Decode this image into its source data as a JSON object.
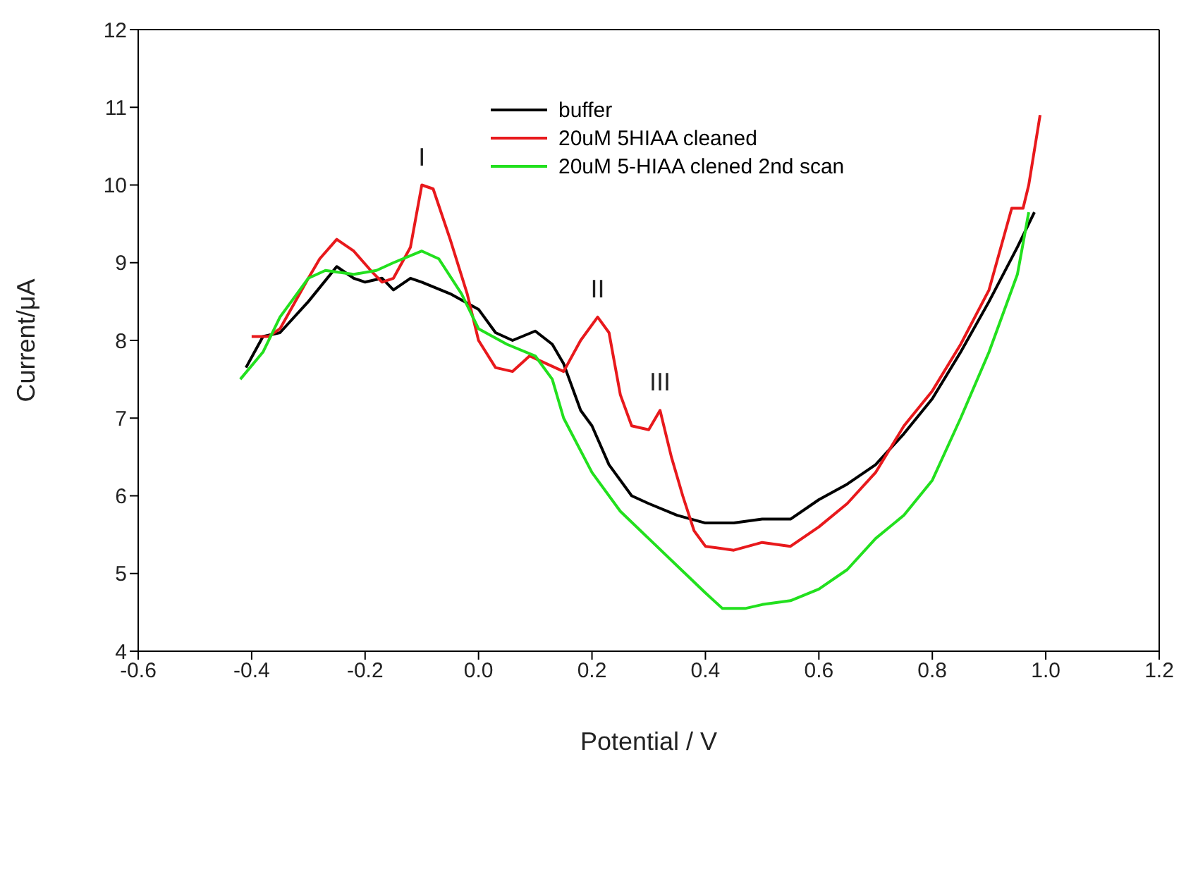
{
  "chart_data": {
    "type": "line",
    "xlabel": "Potential / V",
    "ylabel": "Current/μA",
    "xlim": [
      -0.6,
      1.2
    ],
    "xticks": [
      -0.6,
      -0.4,
      -0.2,
      {
        "value": 0,
        "label": "0.0"
      },
      0.2,
      0.4,
      0.6,
      0.8,
      {
        "value": 1,
        "label": "1.0"
      },
      1.2
    ],
    "ylim": [
      4,
      12
    ],
    "yticks": [
      4,
      5,
      6,
      7,
      8,
      9,
      10,
      11,
      12
    ],
    "grid": false,
    "legend": "top",
    "marker": "none",
    "line_style": "solid",
    "annotations": [
      {
        "text": "I",
        "x": -0.1,
        "y": 10.0
      },
      {
        "text": "II",
        "x": 0.21,
        "y": 8.3
      },
      {
        "text": "III",
        "x": 0.32,
        "y": 7.1
      }
    ],
    "series": [
      {
        "name": "buffer",
        "color": "#000000",
        "x": [
          -0.41,
          -0.38,
          -0.35,
          -0.3,
          -0.25,
          -0.22,
          -0.2,
          -0.17,
          -0.15,
          -0.12,
          -0.1,
          -0.05,
          0.0,
          0.03,
          0.06,
          0.1,
          0.13,
          0.15,
          0.18,
          0.2,
          0.23,
          0.27,
          0.3,
          0.35,
          0.4,
          0.45,
          0.5,
          0.55,
          0.6,
          0.65,
          0.7,
          0.75,
          0.8,
          0.85,
          0.9,
          0.95,
          0.98
        ],
        "values": [
          7.65,
          8.05,
          8.1,
          8.5,
          8.95,
          8.8,
          8.75,
          8.8,
          8.65,
          8.8,
          8.75,
          8.6,
          8.4,
          8.1,
          8.0,
          8.12,
          7.95,
          7.7,
          7.1,
          6.9,
          6.4,
          6.0,
          5.9,
          5.75,
          5.65,
          5.65,
          5.7,
          5.7,
          5.95,
          6.15,
          6.4,
          6.8,
          7.25,
          7.85,
          8.5,
          9.2,
          9.65
        ]
      },
      {
        "name": "20uM 5HIAA cleaned",
        "color": "#e8191c",
        "x": [
          -0.4,
          -0.37,
          -0.35,
          -0.3,
          -0.28,
          -0.25,
          -0.22,
          -0.19,
          -0.17,
          -0.15,
          -0.12,
          -0.1,
          -0.08,
          -0.05,
          -0.02,
          0.0,
          0.03,
          0.06,
          0.09,
          0.12,
          0.15,
          0.18,
          0.21,
          0.23,
          0.25,
          0.27,
          0.3,
          0.32,
          0.34,
          0.36,
          0.38,
          0.4,
          0.45,
          0.5,
          0.55,
          0.6,
          0.65,
          0.7,
          0.75,
          0.8,
          0.85,
          0.9,
          0.94,
          0.96,
          0.97,
          0.99
        ],
        "values": [
          8.05,
          8.05,
          8.15,
          8.8,
          9.05,
          9.3,
          9.15,
          8.9,
          8.75,
          8.8,
          9.2,
          10.0,
          9.95,
          9.3,
          8.6,
          8.0,
          7.65,
          7.6,
          7.8,
          7.7,
          7.6,
          8.0,
          8.3,
          8.1,
          7.3,
          6.9,
          6.85,
          7.1,
          6.5,
          6.0,
          5.55,
          5.35,
          5.3,
          5.4,
          5.35,
          5.6,
          5.9,
          6.3,
          6.9,
          7.35,
          7.95,
          8.65,
          9.7,
          9.7,
          10.0,
          10.9
        ]
      },
      {
        "name": "20uM 5-HIAA clened 2nd scan",
        "color": "#22e01e",
        "x": [
          -0.42,
          -0.38,
          -0.35,
          -0.3,
          -0.27,
          -0.22,
          -0.18,
          -0.15,
          -0.1,
          -0.07,
          -0.03,
          0.0,
          0.05,
          0.1,
          0.13,
          0.15,
          0.2,
          0.25,
          0.3,
          0.35,
          0.4,
          0.43,
          0.47,
          0.5,
          0.55,
          0.6,
          0.65,
          0.7,
          0.75,
          0.8,
          0.85,
          0.9,
          0.95,
          0.97
        ],
        "values": [
          7.5,
          7.85,
          8.3,
          8.8,
          8.9,
          8.85,
          8.9,
          9.0,
          9.15,
          9.05,
          8.6,
          8.15,
          7.95,
          7.8,
          7.5,
          7.0,
          6.3,
          5.8,
          5.45,
          5.1,
          4.75,
          4.55,
          4.55,
          4.6,
          4.65,
          4.8,
          5.05,
          5.45,
          5.75,
          6.2,
          7.0,
          7.85,
          8.85,
          9.65
        ]
      }
    ]
  }
}
